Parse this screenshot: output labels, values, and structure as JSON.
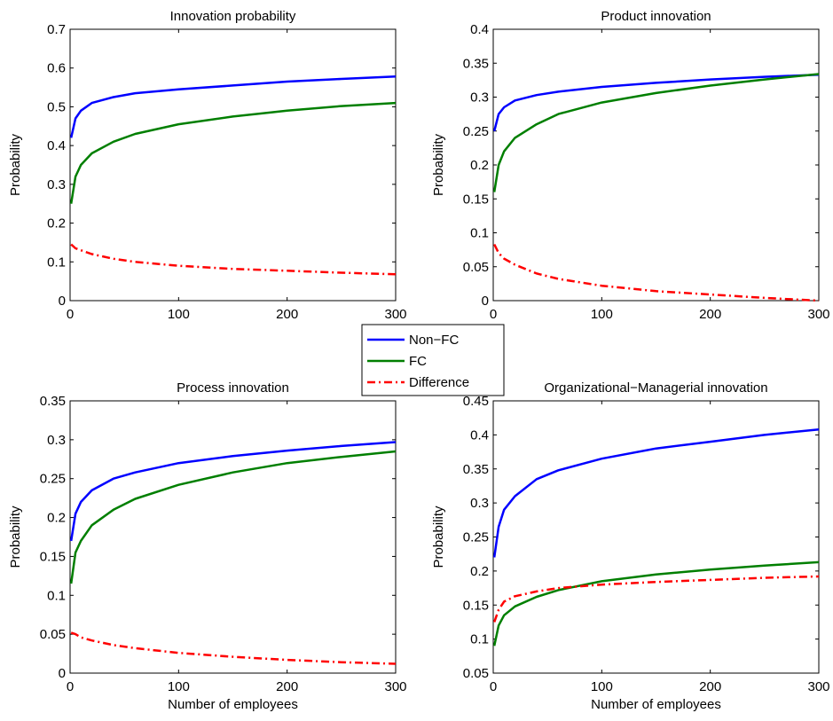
{
  "colors": {
    "non_fc": "#0000ff",
    "fc": "#007f00",
    "difference": "#ff0000"
  },
  "legend": {
    "placement": "center",
    "entries": [
      {
        "name": "Non−FC",
        "style": "solid",
        "color": "#0000ff"
      },
      {
        "name": "FC",
        "style": "solid",
        "color": "#007f00"
      },
      {
        "name": "Difference",
        "style": "dash-dot",
        "color": "#ff0000"
      }
    ]
  },
  "chart_data": [
    {
      "type": "line",
      "title": "Innovation probability",
      "xlabel": "",
      "ylabel": "Probability",
      "xlim": [
        0,
        300
      ],
      "ylim": [
        0,
        0.7
      ],
      "xticks": [
        0,
        100,
        200,
        300
      ],
      "xtick_labels": [
        "0",
        "100",
        "200",
        "300"
      ],
      "yticks": [
        0,
        0.1,
        0.2,
        0.3,
        0.4,
        0.5,
        0.6,
        0.7
      ],
      "ytick_labels": [
        "0",
        "0.1",
        "0.2",
        "0.3",
        "0.4",
        "0.5",
        "0.6",
        "0.7"
      ],
      "grid": false,
      "series": [
        {
          "name": "Non−FC",
          "color": "#0000ff",
          "style": "solid",
          "x": [
            1,
            5,
            10,
            20,
            40,
            60,
            100,
            150,
            200,
            250,
            300
          ],
          "y": [
            0.42,
            0.47,
            0.49,
            0.51,
            0.525,
            0.535,
            0.545,
            0.555,
            0.565,
            0.572,
            0.578
          ]
        },
        {
          "name": "FC",
          "color": "#007f00",
          "style": "solid",
          "x": [
            1,
            5,
            10,
            20,
            40,
            60,
            100,
            150,
            200,
            250,
            300
          ],
          "y": [
            0.25,
            0.32,
            0.35,
            0.38,
            0.41,
            0.43,
            0.455,
            0.475,
            0.49,
            0.502,
            0.51
          ]
        },
        {
          "name": "Difference",
          "color": "#ff0000",
          "style": "dash-dot",
          "x": [
            1,
            5,
            10,
            20,
            40,
            60,
            100,
            150,
            200,
            250,
            300
          ],
          "y": [
            0.145,
            0.135,
            0.13,
            0.12,
            0.108,
            0.1,
            0.09,
            0.082,
            0.077,
            0.072,
            0.068
          ]
        }
      ]
    },
    {
      "type": "line",
      "title": "Product innovation",
      "xlabel": "",
      "ylabel": "Probability",
      "xlim": [
        0,
        300
      ],
      "ylim": [
        0,
        0.4
      ],
      "xticks": [
        0,
        100,
        200,
        300
      ],
      "xtick_labels": [
        "0",
        "100",
        "200",
        "300"
      ],
      "yticks": [
        0,
        0.05,
        0.1,
        0.15,
        0.2,
        0.25,
        0.3,
        0.35,
        0.4
      ],
      "ytick_labels": [
        "0",
        "0.05",
        "0.1",
        "0.15",
        "0.2",
        "0.25",
        "0.3",
        "0.35",
        "0.4"
      ],
      "grid": false,
      "series": [
        {
          "name": "Non−FC",
          "color": "#0000ff",
          "style": "solid",
          "x": [
            1,
            5,
            10,
            20,
            40,
            60,
            100,
            150,
            200,
            250,
            300
          ],
          "y": [
            0.25,
            0.275,
            0.285,
            0.295,
            0.303,
            0.308,
            0.315,
            0.321,
            0.326,
            0.33,
            0.333
          ]
        },
        {
          "name": "FC",
          "color": "#007f00",
          "style": "solid",
          "x": [
            1,
            5,
            10,
            20,
            40,
            60,
            100,
            150,
            200,
            250,
            300
          ],
          "y": [
            0.16,
            0.2,
            0.22,
            0.24,
            0.26,
            0.275,
            0.292,
            0.306,
            0.317,
            0.326,
            0.334
          ]
        },
        {
          "name": "Difference",
          "color": "#ff0000",
          "style": "dash-dot",
          "x": [
            1,
            5,
            10,
            20,
            40,
            60,
            100,
            150,
            200,
            250,
            300
          ],
          "y": [
            0.083,
            0.07,
            0.062,
            0.053,
            0.04,
            0.032,
            0.022,
            0.014,
            0.009,
            0.004,
            0.0
          ]
        }
      ]
    },
    {
      "type": "line",
      "title": "Process innovation",
      "xlabel": "Number of employees",
      "ylabel": "Probability",
      "xlim": [
        0,
        300
      ],
      "ylim": [
        0,
        0.35
      ],
      "xticks": [
        0,
        100,
        200,
        300
      ],
      "xtick_labels": [
        "0",
        "100",
        "200",
        "300"
      ],
      "yticks": [
        0,
        0.05,
        0.1,
        0.15,
        0.2,
        0.25,
        0.3,
        0.35
      ],
      "ytick_labels": [
        "0",
        "0.05",
        "0.1",
        "0.15",
        "0.2",
        "0.25",
        "0.3",
        "0.35"
      ],
      "grid": false,
      "series": [
        {
          "name": "Non−FC",
          "color": "#0000ff",
          "style": "solid",
          "x": [
            1,
            5,
            10,
            20,
            40,
            60,
            100,
            150,
            200,
            250,
            300
          ],
          "y": [
            0.17,
            0.205,
            0.22,
            0.235,
            0.25,
            0.258,
            0.27,
            0.279,
            0.286,
            0.292,
            0.297
          ]
        },
        {
          "name": "FC",
          "color": "#007f00",
          "style": "solid",
          "x": [
            1,
            5,
            10,
            20,
            40,
            60,
            100,
            150,
            200,
            250,
            300
          ],
          "y": [
            0.115,
            0.155,
            0.17,
            0.19,
            0.21,
            0.224,
            0.242,
            0.258,
            0.27,
            0.278,
            0.285
          ]
        },
        {
          "name": "Difference",
          "color": "#ff0000",
          "style": "dash-dot",
          "x": [
            1,
            5,
            10,
            20,
            40,
            60,
            100,
            150,
            200,
            250,
            300
          ],
          "y": [
            0.052,
            0.05,
            0.046,
            0.042,
            0.036,
            0.032,
            0.026,
            0.021,
            0.017,
            0.014,
            0.012
          ]
        }
      ]
    },
    {
      "type": "line",
      "title": "Organizational−Managerial innovation",
      "xlabel": "Number of employees",
      "ylabel": "Probability",
      "xlim": [
        0,
        300
      ],
      "ylim": [
        0.05,
        0.45
      ],
      "xticks": [
        0,
        100,
        200,
        300
      ],
      "xtick_labels": [
        "0",
        "100",
        "200",
        "300"
      ],
      "yticks": [
        0.05,
        0.1,
        0.15,
        0.2,
        0.25,
        0.3,
        0.35,
        0.4,
        0.45
      ],
      "ytick_labels": [
        "0.05",
        "0.1",
        "0.15",
        "0.2",
        "0.25",
        "0.3",
        "0.35",
        "0.4",
        "0.45"
      ],
      "grid": false,
      "series": [
        {
          "name": "Non−FC",
          "color": "#0000ff",
          "style": "solid",
          "x": [
            1,
            5,
            10,
            20,
            40,
            60,
            100,
            150,
            200,
            250,
            300
          ],
          "y": [
            0.22,
            0.265,
            0.29,
            0.31,
            0.335,
            0.348,
            0.365,
            0.38,
            0.39,
            0.4,
            0.408
          ]
        },
        {
          "name": "FC",
          "color": "#007f00",
          "style": "solid",
          "x": [
            1,
            5,
            10,
            20,
            40,
            60,
            100,
            150,
            200,
            250,
            300
          ],
          "y": [
            0.09,
            0.12,
            0.135,
            0.148,
            0.162,
            0.172,
            0.185,
            0.195,
            0.202,
            0.208,
            0.213
          ]
        },
        {
          "name": "Difference",
          "color": "#ff0000",
          "style": "dash-dot",
          "x": [
            1,
            5,
            10,
            20,
            40,
            60,
            100,
            150,
            200,
            250,
            300
          ],
          "y": [
            0.125,
            0.143,
            0.155,
            0.163,
            0.17,
            0.175,
            0.18,
            0.184,
            0.187,
            0.19,
            0.192
          ]
        }
      ]
    }
  ]
}
